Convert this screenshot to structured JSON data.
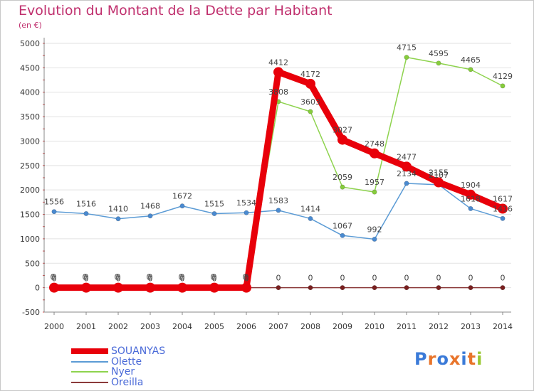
{
  "title": "Evolution du Montant de la Dette par Habitant",
  "subtitle": "(en €)",
  "logo": {
    "text": "Proxiti",
    "letters": [
      "P",
      "r",
      "o",
      "x",
      "i",
      "t",
      "i"
    ],
    "colors": [
      "#3a7ad8",
      "#e8742a",
      "#3a7ad8",
      "#e8742a",
      "#3a7ad8",
      "#e8742a",
      "#9ac832"
    ]
  },
  "chart_data": {
    "type": "line",
    "title": "Evolution du Montant de la Dette par Habitant",
    "subtitle": "(en €)",
    "xlabel": "",
    "ylabel": "",
    "x": [
      "2000",
      "2001",
      "2002",
      "2003",
      "2004",
      "2005",
      "2006",
      "2007",
      "2008",
      "2009",
      "2010",
      "2011",
      "2012",
      "2013",
      "2014"
    ],
    "ylim": [
      -500,
      5000
    ],
    "yticks": [
      -500,
      0,
      500,
      1000,
      1500,
      2000,
      2500,
      3000,
      3500,
      4000,
      4500,
      5000
    ],
    "grid": "horizontal",
    "legend_position": "bottom-left",
    "series": [
      {
        "name": "SOUANYAS",
        "color": "#e8000a",
        "values": [
          0,
          0,
          0,
          0,
          0,
          0,
          0,
          4412,
          4172,
          3027,
          2748,
          2477,
          2155,
          1904,
          1617
        ],
        "labels": [
          "0",
          "0",
          "0",
          "0",
          "0",
          "0",
          "0",
          "4412",
          "4172",
          "3027",
          "2748",
          "2477",
          "2155",
          "1904",
          "1617"
        ]
      },
      {
        "name": "Olette",
        "color": "#5b9bd5",
        "values": [
          1556,
          1516,
          1410,
          1468,
          1672,
          1515,
          1534,
          1583,
          1414,
          1067,
          992,
          2134,
          2107,
          1618,
          1416
        ],
        "labels": [
          "1556",
          "1516",
          "1410",
          "1468",
          "1672",
          "1515",
          "1534",
          "1583",
          "1414",
          "1067",
          "992",
          "2134",
          "2107",
          "1618",
          "1416"
        ]
      },
      {
        "name": "Nyer",
        "color": "#8ed34e",
        "values": [
          0,
          0,
          0,
          0,
          0,
          0,
          0,
          3808,
          3603,
          2059,
          1957,
          4715,
          4595,
          4465,
          4129
        ],
        "labels": [
          "0",
          "0",
          "0",
          "0",
          "0",
          "0",
          "0",
          "3808",
          "3603",
          "2059",
          "1957",
          "4715",
          "4595",
          "4465",
          "4129"
        ]
      },
      {
        "name": "Oreilla",
        "color": "#8b3a3a",
        "values": [
          0,
          0,
          0,
          0,
          0,
          0,
          0,
          0,
          0,
          0,
          0,
          0,
          0,
          0,
          0
        ],
        "labels": [
          "0",
          "0",
          "0",
          "0",
          "0",
          "0",
          "0",
          "0",
          "0",
          "0",
          "0",
          "0",
          "0",
          "0",
          "0"
        ]
      }
    ]
  }
}
